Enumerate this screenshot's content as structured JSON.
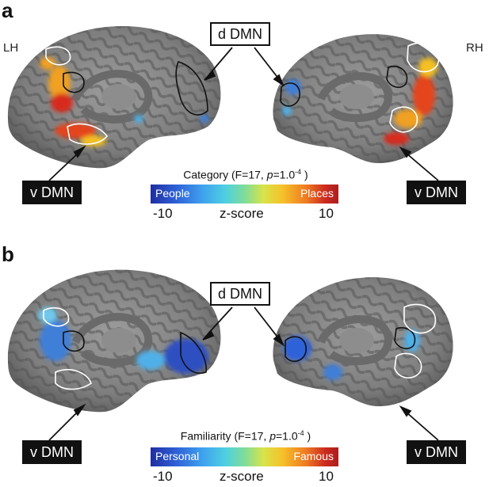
{
  "panels": [
    {
      "letter": "a",
      "left_hemi": "LH",
      "right_hemi": "RH",
      "dorsal_label": "d DMN",
      "ventral_label_left": "v DMN",
      "ventral_label_right": "v DMN",
      "colorbar": {
        "title_prefix": "Category (F=17, ",
        "title_p": "p",
        "title_value": "=1.0",
        "title_exp": "-4",
        "title_suffix": " )",
        "left_end": "People",
        "right_end": "Places",
        "min_tick": "-10",
        "center_label": "z-score",
        "max_tick": "10"
      }
    },
    {
      "letter": "b",
      "dorsal_label": "d DMN",
      "ventral_label_left": "v DMN",
      "ventral_label_right": "v DMN",
      "colorbar": {
        "title_prefix": "Familiarity (F=17, ",
        "title_p": "p",
        "title_value": "=1.0",
        "title_exp": "-4",
        "title_suffix": " )",
        "left_end": "Personal",
        "right_end": "Famous",
        "min_tick": "-10",
        "center_label": "z-score",
        "max_tick": "10"
      }
    }
  ],
  "colors": {
    "brain_dark": "#5e5e5e",
    "brain_light": "#9a9a9a",
    "outline_dorsal": "#111111",
    "outline_ventral": "#ffffff",
    "people_blue": "#2f62d9",
    "places_red": "#cc2a1e"
  }
}
